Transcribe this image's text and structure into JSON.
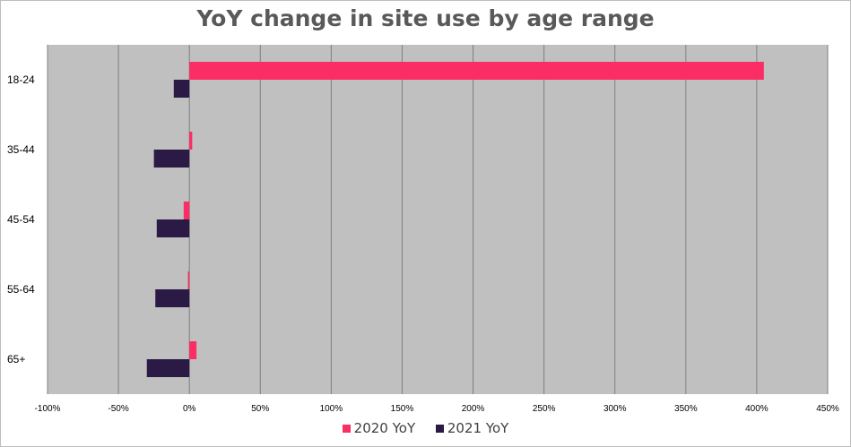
{
  "chart_data": {
    "type": "bar",
    "orientation": "horizontal",
    "title": "YoY change in site use by age range",
    "xlabel": "",
    "ylabel": "",
    "xlim": [
      -100,
      450
    ],
    "x_ticks": [
      -100,
      -50,
      0,
      50,
      100,
      150,
      200,
      250,
      300,
      350,
      400,
      450
    ],
    "x_tick_labels": [
      "-100%",
      "-50%",
      "0%",
      "50%",
      "100%",
      "150%",
      "200%",
      "250%",
      "300%",
      "350%",
      "400%",
      "450%"
    ],
    "categories": [
      "18-24",
      "35-44",
      "45-54",
      "55-64",
      "65+"
    ],
    "series": [
      {
        "name": "2020 YoY",
        "color": "#fc2c64",
        "values": [
          405,
          2,
          -4,
          -1,
          5
        ]
      },
      {
        "name": "2021 YoY",
        "color": "#2a1a45",
        "values": [
          -11,
          -25,
          -23,
          -24,
          -30
        ]
      }
    ],
    "plot_background": "#c0c0c0",
    "gridlines": true,
    "legend_position": "bottom"
  }
}
